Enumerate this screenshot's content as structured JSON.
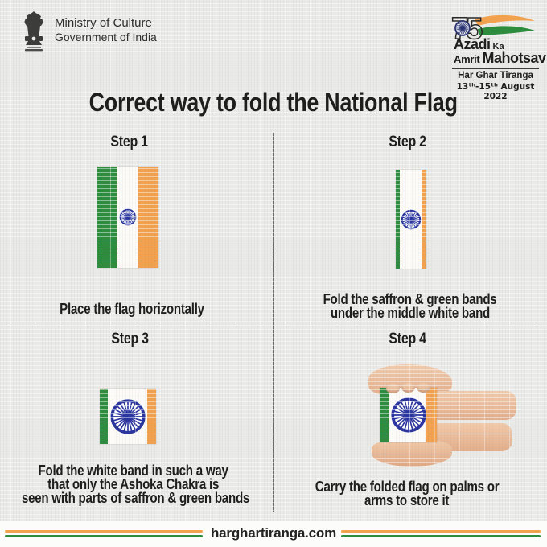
{
  "header": {
    "ministry": {
      "emblem_icon": "national-emblem-of-india",
      "line1": "Ministry of Culture",
      "line2": "Government of India"
    },
    "campaign": {
      "logo_number": "75",
      "azadi": "Azadi",
      "ka": "Ka",
      "amrit": "Amrit",
      "mahotsav": "Mahotsav",
      "har_ghar_tiranga": "Har Ghar Tiranga",
      "dates": "13ᵗʰ-15ᵗʰ August 2022"
    }
  },
  "title": "Correct way to fold the National Flag",
  "steps": [
    {
      "label": "Step 1",
      "caption_line1": "Place the flag horizontally"
    },
    {
      "label": "Step 2",
      "caption_line1": "Fold the saffron & green bands",
      "caption_line2": "under the middle white band"
    },
    {
      "label": "Step 3",
      "caption_line1": "Fold the white band in such a way",
      "caption_line2": "that only the  Ashoka Chakra is",
      "caption_line3": "seen with parts of saffron & green bands"
    },
    {
      "label": "Step 4",
      "caption_line1": "Carry the folded flag on palms or",
      "caption_line2": "arms to store it"
    }
  ],
  "footer": {
    "website": "harghartiranga.com"
  },
  "colors": {
    "saffron": "#F2A14E",
    "green": "#2E8C3E",
    "chakra_navy": "#2A35A0",
    "text_dark": "#1E1E1C",
    "background": "#E9E9E7",
    "white_band": "#FBFAF7",
    "skin": "#ECC2A2",
    "divider": "#55534F"
  }
}
